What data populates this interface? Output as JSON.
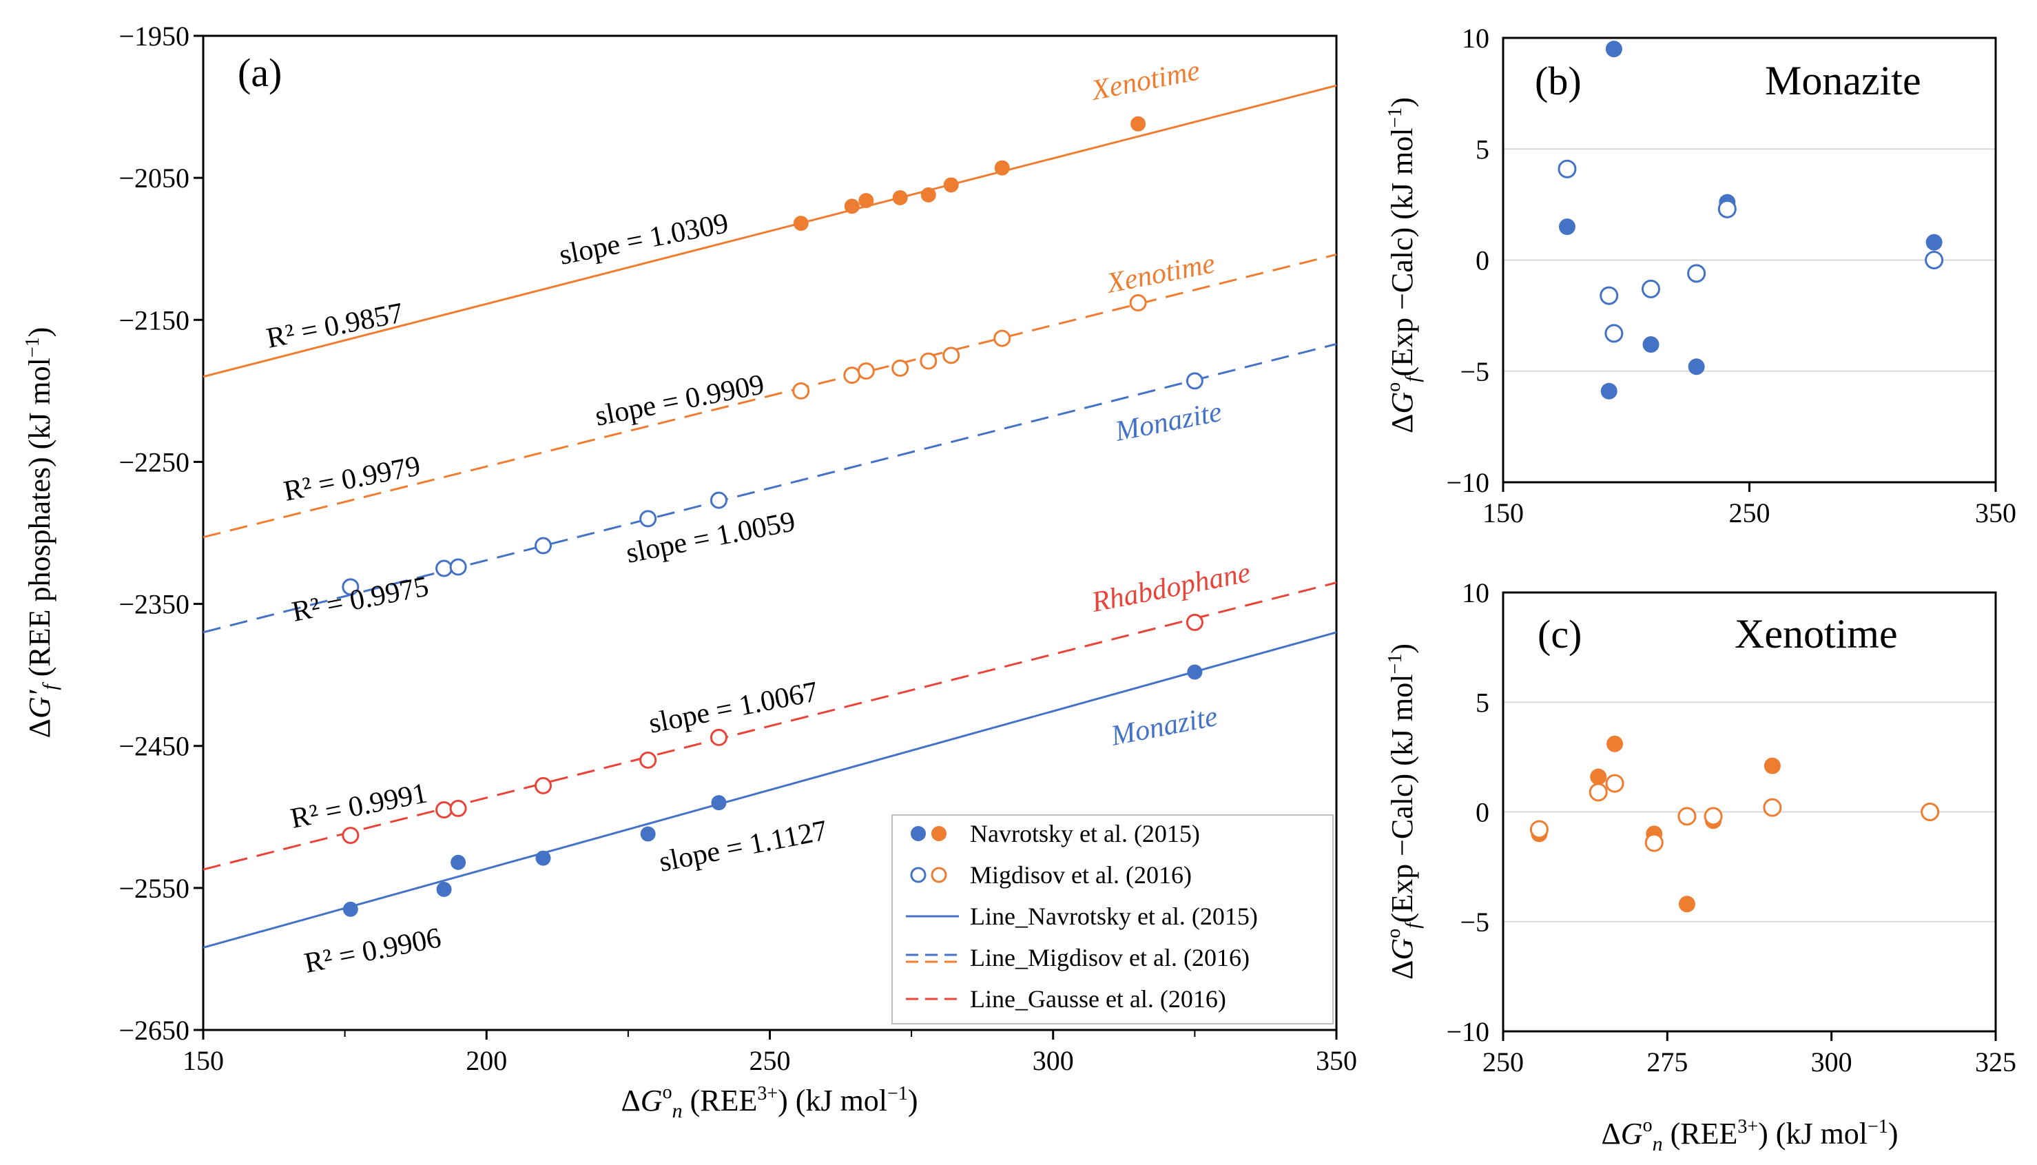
{
  "colors": {
    "orange": "#ED7D31",
    "blue": "#4472C4",
    "red": "#E8443A",
    "grid": "#D9D9D9"
  },
  "chart_data": [
    {
      "id": "a",
      "type": "scatter",
      "panel_label": "(a)",
      "ylabel": "ΔG′f (REE phosphates) (kJ mol⁻¹)",
      "xlabel": "ΔG°n (REE³⁺) (kJ mol⁻¹)",
      "xlim": [
        150,
        350
      ],
      "ylim": [
        -2650,
        -1950
      ],
      "xticks": [
        150,
        200,
        250,
        300,
        350
      ],
      "yticks": [
        -1950,
        -2050,
        -2150,
        -2250,
        -2350,
        -2450,
        -2550,
        -2650
      ],
      "grid": false,
      "series": [
        {
          "name": "Xenotime Navrotsky et al. (2015)",
          "color": "orange",
          "filled": true,
          "x": [
            255.5,
            264.5,
            267,
            273,
            278,
            282,
            291,
            315
          ],
          "y": [
            -2082,
            -2070,
            -2066,
            -2064,
            -2062,
            -2055,
            -2043,
            -2012
          ]
        },
        {
          "name": "Xenotime Migdisov et al. (2016)",
          "color": "orange",
          "filled": false,
          "x": [
            255.5,
            264.5,
            267,
            273,
            278,
            282,
            291,
            315
          ],
          "y": [
            -2200,
            -2189,
            -2186,
            -2184,
            -2179,
            -2175,
            -2163,
            -2138
          ]
        },
        {
          "name": "Monazite Migdisov et al. (2016)",
          "color": "blue",
          "filled": false,
          "x": [
            176,
            192.5,
            195,
            210,
            228.5,
            241,
            325
          ],
          "y": [
            -2338,
            -2325,
            -2324,
            -2309,
            -2290,
            -2277,
            -2193
          ]
        },
        {
          "name": "Rhabdophane Gausse et al. (2016)",
          "color": "red",
          "filled": false,
          "x": [
            176,
            192.5,
            195,
            210,
            228.5,
            241,
            325
          ],
          "y": [
            -2513,
            -2495,
            -2494,
            -2478,
            -2460,
            -2444,
            -2363
          ]
        },
        {
          "name": "Monazite Navrotsky et al. (2015)",
          "color": "blue",
          "filled": true,
          "x": [
            176,
            192.5,
            195,
            210,
            228.5,
            241,
            325
          ],
          "y": [
            -2565,
            -2551,
            -2532,
            -2529,
            -2512,
            -2490,
            -2398
          ]
        }
      ],
      "fit_lines": [
        {
          "color": "orange",
          "style": "solid",
          "x": [
            150,
            350
          ],
          "y": [
            -2190,
            -1985
          ]
        },
        {
          "color": "orange",
          "style": "dashed",
          "x": [
            150,
            350
          ],
          "y": [
            -2303,
            -2104
          ]
        },
        {
          "color": "blue",
          "style": "dashed",
          "x": [
            150,
            350
          ],
          "y": [
            -2370,
            -2167
          ]
        },
        {
          "color": "red",
          "style": "dashed",
          "x": [
            150,
            350
          ],
          "y": [
            -2537,
            -2335
          ]
        },
        {
          "color": "blue",
          "style": "solid",
          "x": [
            150,
            350
          ],
          "y": [
            -2592,
            -2370
          ]
        }
      ],
      "annotations": {
        "xenotime_solid": "Xenotime",
        "xenotime_dashed": "Xenotime",
        "monazite_dashed": "Monazite",
        "rhabdophane": "Rhabdophane",
        "monazite_solid": "Monazite",
        "slope_1": "slope = 1.0309",
        "r2_1": "R² = 0.9857",
        "slope_2": "slope = 0.9909",
        "r2_2": "R² = 0.9979",
        "slope_3": "slope = 1.0059",
        "r2_3": "R² = 0.9975",
        "slope_4": "slope = 1.0067",
        "r2_4": "R² = 0.9991",
        "slope_5": "slope = 1.1127",
        "r2_5": "R² = 0.9906"
      },
      "legend": {
        "placement": "bottom-right",
        "entries": [
          {
            "label": "Navrotsky et al. (2015)",
            "kind": "filled-markers"
          },
          {
            "label": "Migdisov et al. (2016)",
            "kind": "open-markers"
          },
          {
            "label": "Line_Navrotsky et al. (2015)",
            "kind": "solid-line",
            "color": "blue"
          },
          {
            "label": "Line_Migdisov et al. (2016)",
            "kind": "dashed-lines",
            "color": "blue"
          },
          {
            "label": "Line_Gausse et al. (2016)",
            "kind": "dashed-line",
            "color": "red"
          }
        ]
      }
    },
    {
      "id": "b",
      "type": "scatter",
      "panel_label": "(b)",
      "title": "Monazite",
      "ylabel": "ΔG°f (Exp −Calc) (kJ mol⁻¹)",
      "xlabel": "",
      "xlim": [
        150,
        350
      ],
      "ylim": [
        -10,
        10
      ],
      "xticks": [
        150,
        250,
        350
      ],
      "yticks": [
        10,
        5,
        0,
        -5,
        -10
      ],
      "grid": true,
      "series": [
        {
          "name": "Navrotsky et al. (2015)",
          "color": "blue",
          "filled": true,
          "x": [
            176,
            193,
            195,
            210,
            228.5,
            241,
            325
          ],
          "y": [
            1.5,
            -5.9,
            9.5,
            -3.8,
            -4.8,
            2.6,
            0.8
          ]
        },
        {
          "name": "Migdisov et al. (2016)",
          "color": "blue",
          "filled": false,
          "x": [
            176,
            193,
            195,
            210,
            228.5,
            241,
            325
          ],
          "y": [
            4.1,
            -1.6,
            -3.3,
            -1.3,
            -0.6,
            2.3,
            0.0
          ]
        }
      ]
    },
    {
      "id": "c",
      "type": "scatter",
      "panel_label": "(c)",
      "title": "Xenotime",
      "ylabel": "ΔG°f (Exp −Calc) (kJ mol⁻¹)",
      "xlabel": "ΔG°n (REE³⁺) (kJ mol⁻¹)",
      "xlim": [
        250,
        325
      ],
      "ylim": [
        -10,
        10
      ],
      "xticks": [
        250,
        275,
        300,
        325
      ],
      "yticks": [
        10,
        5,
        0,
        -5,
        -10
      ],
      "grid": true,
      "series": [
        {
          "name": "Navrotsky et al. (2015)",
          "color": "orange",
          "filled": true,
          "x": [
            255.5,
            264.5,
            267,
            273,
            278,
            282,
            291,
            315
          ],
          "y": [
            -1.0,
            1.6,
            3.1,
            -1.0,
            -4.2,
            -0.4,
            2.1,
            0.0
          ]
        },
        {
          "name": "Migdisov et al. (2016)",
          "color": "orange",
          "filled": false,
          "x": [
            255.5,
            264.5,
            267,
            273,
            278,
            282,
            291,
            315
          ],
          "y": [
            -0.8,
            0.9,
            1.3,
            -1.4,
            -0.2,
            -0.2,
            0.2,
            0.0
          ]
        }
      ]
    }
  ]
}
